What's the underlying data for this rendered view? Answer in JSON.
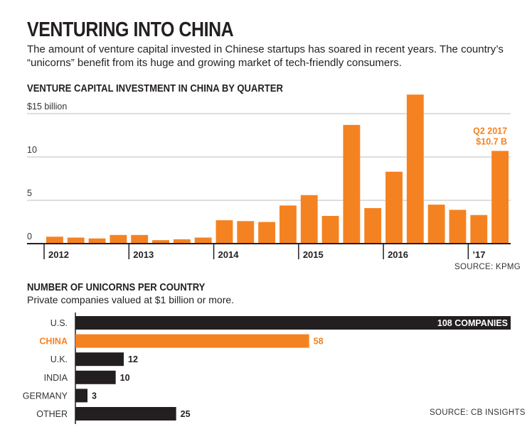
{
  "header": {
    "title": "VENTURING INTO CHINA",
    "subtitle": "The amount of venture capital invested in Chinese startups has soared in recent years. The country’s “unicorns” benefit from its huge and growing market of tech-friendly consumers."
  },
  "colors": {
    "accent": "#f58220",
    "dark": "#231f20",
    "grid": "#bdbdbd"
  },
  "chart_data": [
    {
      "type": "bar",
      "title": "VENTURE CAPITAL INVESTMENT IN CHINA BY QUARTER",
      "unit_label": "$15 billion",
      "y_ticks": [
        "0",
        "5",
        "10",
        "$15 billion"
      ],
      "ylim": [
        0,
        17
      ],
      "years": [
        "2012",
        "2013",
        "2014",
        "2015",
        "2016",
        "’17"
      ],
      "categories": [
        "2012 Q1",
        "2012 Q2",
        "2012 Q3",
        "2012 Q4",
        "2013 Q1",
        "2013 Q2",
        "2013 Q3",
        "2013 Q4",
        "2014 Q1",
        "2014 Q2",
        "2014 Q3",
        "2014 Q4",
        "2015 Q1",
        "2015 Q2",
        "2015 Q3",
        "2015 Q4",
        "2016 Q1",
        "2016 Q2",
        "2016 Q3",
        "2016 Q4",
        "2017 Q1",
        "2017 Q2"
      ],
      "values": [
        0.8,
        0.7,
        0.6,
        1.0,
        1.0,
        0.4,
        0.5,
        0.7,
        2.7,
        2.6,
        2.5,
        4.4,
        5.6,
        3.2,
        13.7,
        4.1,
        8.3,
        17.2,
        4.5,
        3.9,
        3.3,
        10.7
      ],
      "annotation": {
        "line1": "Q2 2017",
        "line2": "$10.7 B"
      },
      "source": "SOURCE: KPMG"
    },
    {
      "type": "bar",
      "orientation": "horizontal",
      "title": "NUMBER OF UNICORNS PER COUNTRY",
      "subtitle": "Private companies valued at $1 billion or more.",
      "categories": [
        "U.S.",
        "CHINA",
        "U.K.",
        "INDIA",
        "GERMANY",
        "OTHER"
      ],
      "values": [
        108,
        58,
        12,
        10,
        3,
        25
      ],
      "value_labels": [
        "108 COMPANIES",
        "58",
        "12",
        "10",
        "3",
        "25"
      ],
      "highlight": "CHINA",
      "source": "SOURCE: CB INSIGHTS"
    }
  ]
}
